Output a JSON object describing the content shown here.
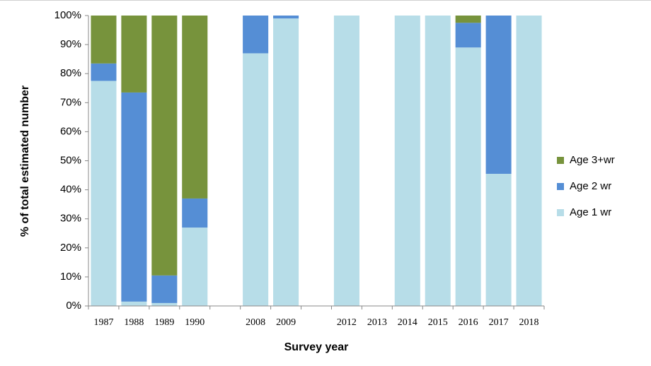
{
  "chart_data": {
    "type": "stacked_bar",
    "x_label": "Survey year",
    "y_label": "% of total estimated number",
    "categories": [
      "1987",
      "1988",
      "1989",
      "1990",
      null,
      "2008",
      "2009",
      null,
      "2012",
      "2013",
      "2014",
      "2015",
      "2016",
      "2017",
      "2018"
    ],
    "series": [
      {
        "name": "Age 1 wr",
        "color": "#b7dde8",
        "values": [
          77.5,
          1.5,
          1,
          27,
          null,
          87,
          99,
          null,
          100,
          null,
          100,
          100,
          89,
          45.5,
          100
        ]
      },
      {
        "name": "Age 2 wr",
        "color": "#558ed5",
        "values": [
          6,
          72,
          9.5,
          10,
          null,
          13,
          1,
          null,
          0,
          null,
          0,
          0,
          8.5,
          54.5,
          0
        ]
      },
      {
        "name": "Age 3+wr",
        "color": "#77933c",
        "values": [
          16.5,
          26.5,
          89.5,
          63,
          null,
          0,
          0,
          null,
          0,
          null,
          0,
          0,
          2.5,
          0,
          0
        ]
      }
    ],
    "ylim": [
      0,
      100
    ],
    "yticks": [
      {
        "value": 0,
        "label": "0%"
      },
      {
        "value": 10,
        "label": "10%"
      },
      {
        "value": 20,
        "label": "20%"
      },
      {
        "value": 30,
        "label": "30%"
      },
      {
        "value": 40,
        "label": "40%"
      },
      {
        "value": 50,
        "label": "50%"
      },
      {
        "value": 60,
        "label": "60%"
      },
      {
        "value": 70,
        "label": "70%"
      },
      {
        "value": 80,
        "label": "80%"
      },
      {
        "value": 90,
        "label": "90%"
      },
      {
        "value": 100,
        "label": "100%"
      }
    ],
    "grid": false,
    "legend": "right"
  }
}
